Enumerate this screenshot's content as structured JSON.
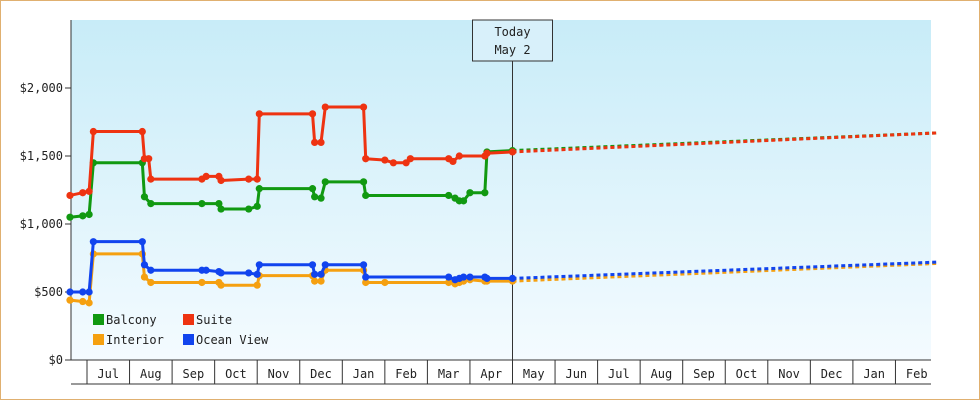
{
  "chart_data": {
    "type": "line",
    "title": "",
    "xlabel": "",
    "ylabel": "",
    "ylim": [
      0,
      2500
    ],
    "y_ticks": [
      0,
      500,
      1000,
      1500,
      2000
    ],
    "y_tick_labels": [
      "$0",
      "$500",
      "$1,000",
      "$1,500",
      "$2,000"
    ],
    "x_month_labels": [
      "Jul",
      "Aug",
      "Sep",
      "Oct",
      "Nov",
      "Dec",
      "Jan",
      "Feb",
      "Mar",
      "Apr",
      "May",
      "Jun",
      "Jul",
      "Aug",
      "Sep",
      "Oct",
      "Nov",
      "Dec",
      "Jan",
      "Feb"
    ],
    "grid": false,
    "legend_position": "bottom-left",
    "today_marker": {
      "line1": "Today",
      "line2": "May 2",
      "x": 10.0
    },
    "series": [
      {
        "name": "Balcony",
        "color": "#119911",
        "points": [
          [
            -0.4,
            1050
          ],
          [
            -0.1,
            1060
          ],
          [
            0.05,
            1070
          ],
          [
            0.15,
            1450
          ],
          [
            1.3,
            1450
          ],
          [
            1.35,
            1200
          ],
          [
            1.5,
            1150
          ],
          [
            2.7,
            1150
          ],
          [
            3.1,
            1150
          ],
          [
            3.15,
            1110
          ],
          [
            3.8,
            1110
          ],
          [
            4.0,
            1130
          ],
          [
            4.05,
            1260
          ],
          [
            5.3,
            1260
          ],
          [
            5.35,
            1200
          ],
          [
            5.5,
            1190
          ],
          [
            5.6,
            1310
          ],
          [
            6.5,
            1310
          ],
          [
            6.55,
            1210
          ],
          [
            8.5,
            1210
          ],
          [
            8.65,
            1190
          ],
          [
            8.75,
            1170
          ],
          [
            8.85,
            1170
          ],
          [
            9.0,
            1230
          ],
          [
            9.35,
            1230
          ],
          [
            9.4,
            1530
          ],
          [
            10.0,
            1540
          ]
        ],
        "projection": [
          [
            10.0,
            1540
          ],
          [
            20.0,
            1670
          ]
        ]
      },
      {
        "name": "Suite",
        "color": "#ee3311",
        "points": [
          [
            -0.4,
            1210
          ],
          [
            -0.1,
            1230
          ],
          [
            0.05,
            1240
          ],
          [
            0.15,
            1680
          ],
          [
            1.3,
            1680
          ],
          [
            1.35,
            1480
          ],
          [
            1.45,
            1480
          ],
          [
            1.5,
            1330
          ],
          [
            2.7,
            1330
          ],
          [
            2.8,
            1350
          ],
          [
            3.1,
            1350
          ],
          [
            3.15,
            1320
          ],
          [
            3.8,
            1330
          ],
          [
            4.0,
            1330
          ],
          [
            4.05,
            1810
          ],
          [
            5.3,
            1810
          ],
          [
            5.35,
            1600
          ],
          [
            5.5,
            1600
          ],
          [
            5.6,
            1860
          ],
          [
            6.5,
            1860
          ],
          [
            6.55,
            1480
          ],
          [
            7.0,
            1470
          ],
          [
            7.2,
            1450
          ],
          [
            7.5,
            1450
          ],
          [
            7.6,
            1480
          ],
          [
            8.5,
            1480
          ],
          [
            8.6,
            1460
          ],
          [
            8.75,
            1500
          ],
          [
            9.35,
            1500
          ],
          [
            9.4,
            1520
          ],
          [
            10.0,
            1530
          ]
        ],
        "projection": [
          [
            10.0,
            1530
          ],
          [
            20.0,
            1670
          ]
        ]
      },
      {
        "name": "Interior",
        "color": "#f5a010",
        "points": [
          [
            -0.4,
            440
          ],
          [
            -0.1,
            430
          ],
          [
            0.05,
            420
          ],
          [
            0.15,
            780
          ],
          [
            1.3,
            780
          ],
          [
            1.35,
            610
          ],
          [
            1.5,
            570
          ],
          [
            2.7,
            570
          ],
          [
            3.1,
            570
          ],
          [
            3.15,
            550
          ],
          [
            4.0,
            550
          ],
          [
            4.05,
            620
          ],
          [
            5.3,
            620
          ],
          [
            5.35,
            580
          ],
          [
            5.5,
            580
          ],
          [
            5.6,
            660
          ],
          [
            6.5,
            660
          ],
          [
            6.55,
            570
          ],
          [
            7.0,
            570
          ],
          [
            8.5,
            570
          ],
          [
            8.65,
            560
          ],
          [
            8.75,
            570
          ],
          [
            8.85,
            580
          ],
          [
            9.0,
            590
          ],
          [
            9.35,
            580
          ],
          [
            9.4,
            580
          ],
          [
            10.0,
            580
          ]
        ],
        "projection": [
          [
            10.0,
            580
          ],
          [
            20.0,
            710
          ]
        ]
      },
      {
        "name": "Ocean View",
        "color": "#1144ee",
        "points": [
          [
            -0.4,
            500
          ],
          [
            -0.1,
            500
          ],
          [
            0.05,
            500
          ],
          [
            0.15,
            870
          ],
          [
            1.3,
            870
          ],
          [
            1.35,
            700
          ],
          [
            1.5,
            660
          ],
          [
            2.7,
            660
          ],
          [
            2.8,
            660
          ],
          [
            3.1,
            650
          ],
          [
            3.15,
            640
          ],
          [
            3.8,
            640
          ],
          [
            4.0,
            630
          ],
          [
            4.05,
            700
          ],
          [
            5.3,
            700
          ],
          [
            5.35,
            630
          ],
          [
            5.5,
            630
          ],
          [
            5.6,
            700
          ],
          [
            6.5,
            700
          ],
          [
            6.55,
            610
          ],
          [
            8.5,
            610
          ],
          [
            8.65,
            590
          ],
          [
            8.75,
            600
          ],
          [
            8.85,
            610
          ],
          [
            9.0,
            610
          ],
          [
            9.35,
            610
          ],
          [
            9.4,
            600
          ],
          [
            10.0,
            600
          ]
        ],
        "projection": [
          [
            10.0,
            600
          ],
          [
            20.0,
            720
          ]
        ]
      }
    ]
  }
}
